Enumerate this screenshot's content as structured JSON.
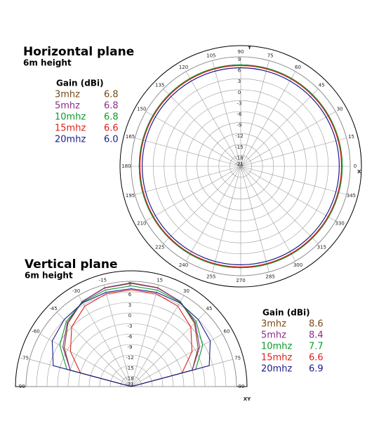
{
  "chart_data": [
    {
      "type": "polar",
      "title": "Horizontal plane",
      "subtitle": "6m height",
      "legend_title": "Gain (dBi)",
      "axis_labels": {
        "x": "X",
        "y": "Y"
      },
      "rlim": [
        -21,
        9
      ],
      "rticks": [
        9,
        6,
        3,
        0,
        -3,
        -6,
        -9,
        -12,
        -15,
        -18,
        -21
      ],
      "angle_ticks": [
        0,
        15,
        30,
        45,
        60,
        75,
        90,
        105,
        120,
        135,
        150,
        165,
        180,
        195,
        210,
        225,
        240,
        255,
        270,
        285,
        300,
        315,
        330,
        345
      ],
      "series": [
        {
          "name": "3mhz",
          "color": "#7a4a14",
          "gain": 6.8
        },
        {
          "name": "5mhz",
          "color": "#8e2a8e",
          "gain": 6.8
        },
        {
          "name": "10mhz",
          "color": "#0a9a2a",
          "gain": 6.8
        },
        {
          "name": "15mhz",
          "color": "#e0201a",
          "gain": 6.6
        },
        {
          "name": "20mhz",
          "color": "#1a1a8c",
          "gain": 6,
          "gain_label": "6.0"
        }
      ]
    },
    {
      "type": "polar-half",
      "title": "Vertical plane",
      "subtitle": "6m height",
      "legend_title": "Gain (dBi)",
      "axis_label": "XY",
      "rlim": [
        -21,
        9
      ],
      "rticks": [
        9,
        6,
        3,
        0,
        -3,
        -6,
        -9,
        -12,
        -15,
        -18,
        -21
      ],
      "angle_ticks": [
        -90,
        -75,
        -60,
        -45,
        -30,
        -15,
        15,
        30,
        45,
        60,
        75,
        90
      ],
      "angles": [
        -90,
        -75,
        -60,
        -45,
        -30,
        -15,
        0,
        15,
        30,
        45,
        60,
        75,
        90
      ],
      "series": [
        {
          "name": "3mhz",
          "color": "#7a4a14",
          "gain": 8.6,
          "values": [
            -21,
            -3,
            1,
            4.5,
            7,
            8.2,
            8.6,
            8.2,
            7,
            4.5,
            1,
            -3,
            -21
          ]
        },
        {
          "name": "5mhz",
          "color": "#8e2a8e",
          "gain": 8.4,
          "values": [
            -21,
            -3,
            1.5,
            4.8,
            7,
            8.1,
            8.4,
            8.1,
            7,
            4.8,
            1.5,
            -3,
            -21
          ]
        },
        {
          "name": "10mhz",
          "color": "#0a9a2a",
          "gain": 7.7,
          "values": [
            -21,
            -2,
            2.5,
            5.2,
            6.8,
            7.5,
            7.7,
            7.5,
            6.8,
            5.2,
            2.5,
            -2,
            -21
          ]
        },
        {
          "name": "15mhz",
          "color": "#e0201a",
          "gain": 6.6,
          "values": [
            -21,
            -6,
            -1,
            3,
            5.5,
            6.4,
            6.6,
            6.4,
            5.5,
            3,
            -1,
            -6,
            -21
          ]
        },
        {
          "name": "20mhz",
          "color": "#1a1a8c",
          "gain": 6.9,
          "values": [
            -21,
            2,
            5,
            6,
            6.6,
            6.8,
            6.9,
            6.8,
            6.6,
            6,
            5,
            2,
            -21
          ]
        }
      ]
    }
  ]
}
